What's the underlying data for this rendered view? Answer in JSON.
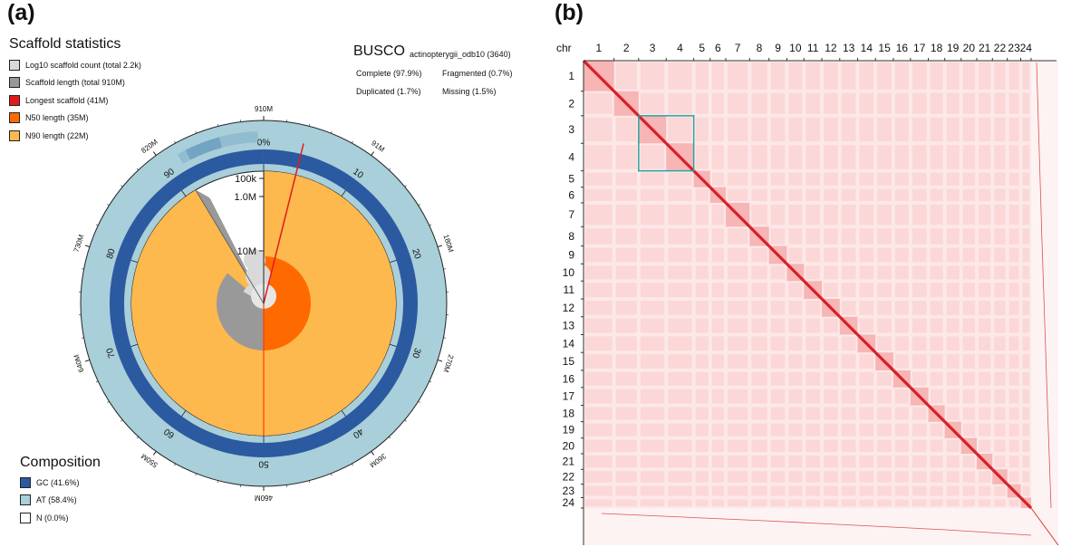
{
  "panel_a": {
    "label": "(a)",
    "scaffold_title": "Scaffold statistics",
    "legend": [
      {
        "label": "Log10 scaffold count (total 2.2k)",
        "color": "#d9d9d9"
      },
      {
        "label": "Scaffold length (total 910M)",
        "color": "#999999"
      },
      {
        "label": "Longest scaffold (41M)",
        "color": "#e31a1c"
      },
      {
        "label": "N50 length (35M)",
        "color": "#ff6a00"
      },
      {
        "label": "N90 length (22M)",
        "color": "#fdb84e"
      }
    ],
    "busco": {
      "title": "BUSCO",
      "dataset": "actinopterygii_odb10 (3640)",
      "complete": "Complete (97.9%)",
      "fragmented": "Fragmented (0.7%)",
      "duplicated": "Duplicated (1.7%)",
      "missing": "Missing (1.5%)"
    },
    "composition_title": "Composition",
    "composition": [
      {
        "label": "GC (41.6%)",
        "color": "#2c5aa0"
      },
      {
        "label": "AT (58.4%)",
        "color": "#a8cfda"
      },
      {
        "label": "N (0.0%)",
        "color": "#ffffff"
      }
    ],
    "outer_ticks": [
      {
        "label": "910M",
        "angle": 0
      },
      {
        "label": "91M",
        "angle": 36
      },
      {
        "label": "180M",
        "angle": 72
      },
      {
        "label": "270M",
        "angle": 108
      },
      {
        "label": "360M",
        "angle": 144
      },
      {
        "label": "460M",
        "angle": 180
      },
      {
        "label": "550M",
        "angle": 216
      },
      {
        "label": "640M",
        "angle": 252
      },
      {
        "label": "730M",
        "angle": 288
      },
      {
        "label": "820M",
        "angle": 324
      }
    ],
    "percent_ticks": [
      {
        "label": "0%",
        "angle": 0
      },
      {
        "label": "10",
        "angle": 36
      },
      {
        "label": "20",
        "angle": 72
      },
      {
        "label": "30",
        "angle": 108
      },
      {
        "label": "40",
        "angle": 144
      },
      {
        "label": "50",
        "angle": 180
      },
      {
        "label": "60",
        "angle": 216
      },
      {
        "label": "70",
        "angle": 252
      },
      {
        "label": "80",
        "angle": 288
      },
      {
        "label": "90",
        "angle": 324
      }
    ],
    "radial_scale": [
      "100k",
      "1.0M",
      "10M"
    ]
  },
  "panel_b": {
    "label": "(b)",
    "chr_header": "chr",
    "chromosomes": [
      "1",
      "2",
      "3",
      "4",
      "5",
      "6",
      "7",
      "8",
      "9",
      "10",
      "11",
      "12",
      "13",
      "14",
      "15",
      "16",
      "17",
      "18",
      "19",
      "20",
      "21",
      "22",
      "23",
      "24"
    ]
  }
}
